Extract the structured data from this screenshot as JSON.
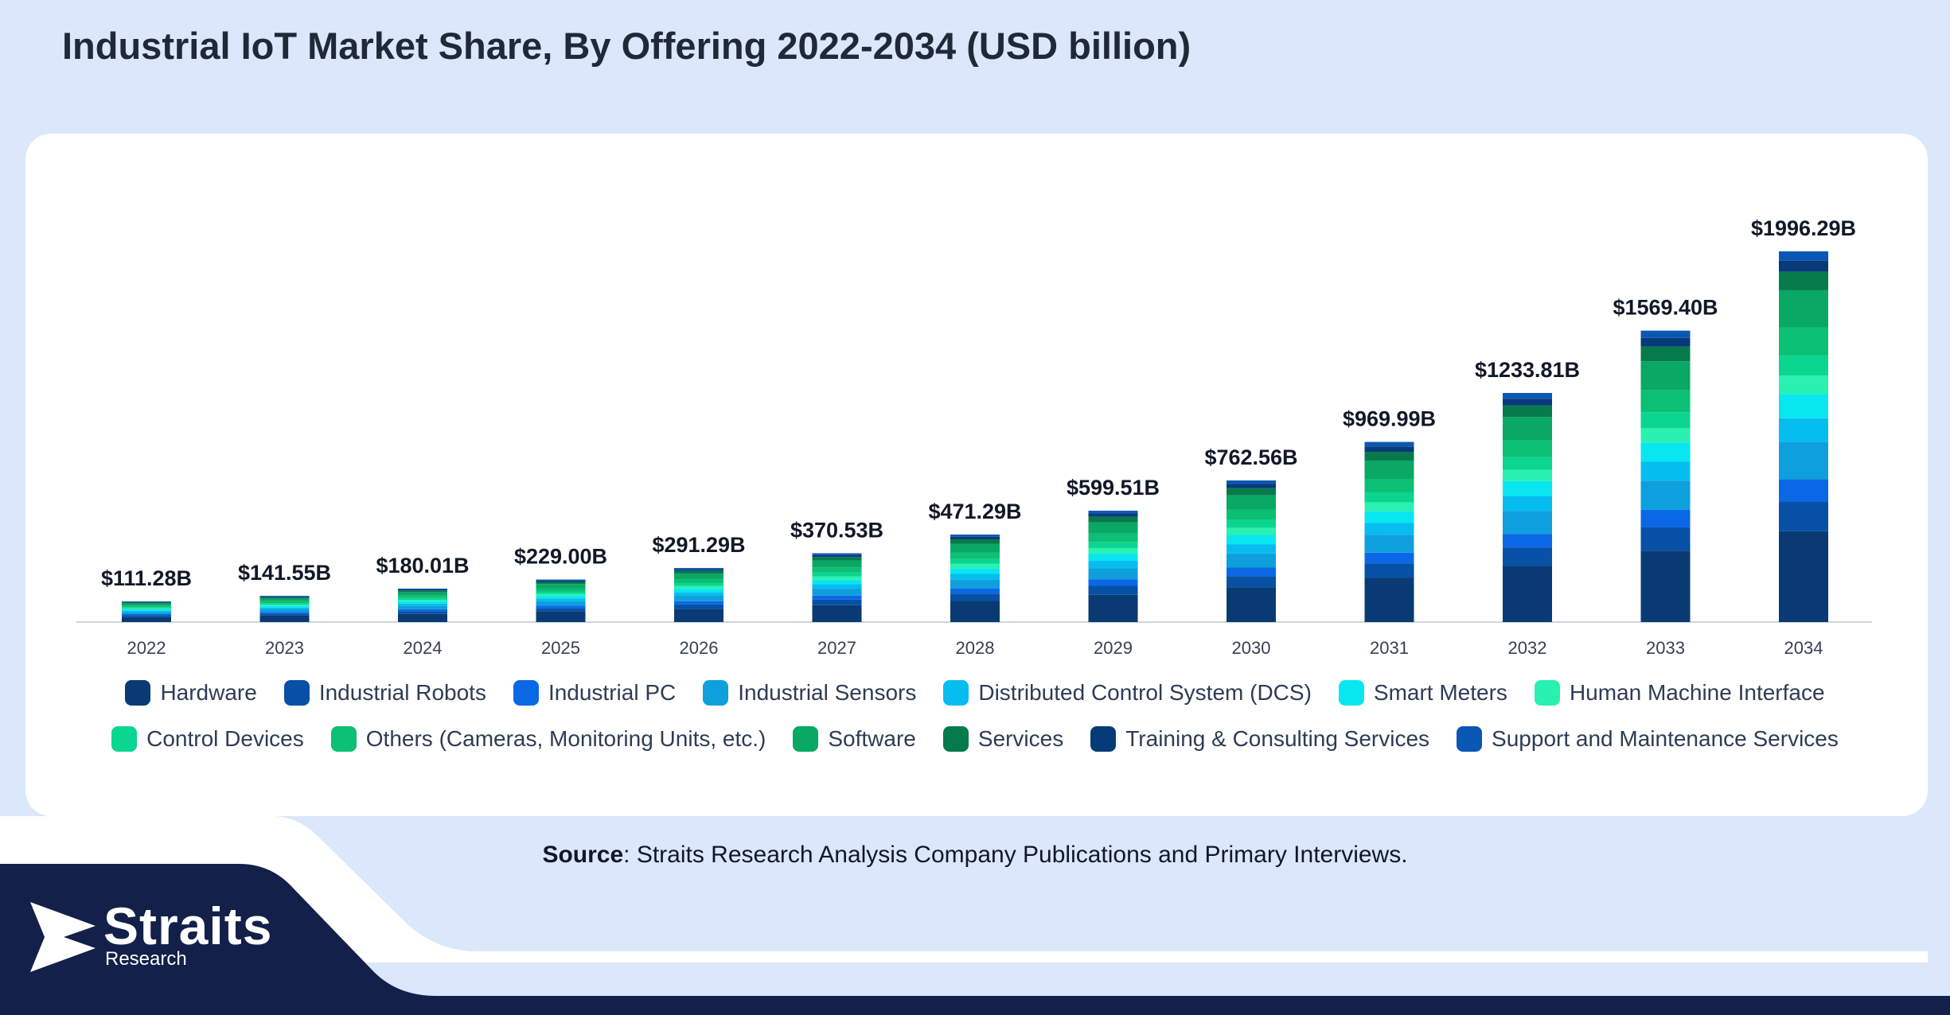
{
  "page": {
    "title": "Industrial IoT Market Share, By Offering 2022-2034 (USD billion)",
    "source_label": "Source",
    "source_text": ": Straits Research Analysis Company Publications and Primary Interviews.",
    "logo_name": "Straits",
    "logo_sub": "Research"
  },
  "colors": {
    "background": "#dbe7fb",
    "card": "#ffffff",
    "dark_navy": "#12204a"
  },
  "chart_data": {
    "type": "bar",
    "stacked": true,
    "title": "Industrial IoT Market Share, By Offering 2022-2034 (USD billion)",
    "unit": "USD billion",
    "categories": [
      "2022",
      "2023",
      "2024",
      "2025",
      "2026",
      "2027",
      "2028",
      "2029",
      "2030",
      "2031",
      "2032",
      "2033",
      "2034"
    ],
    "totals": [
      111.28,
      141.55,
      180.01,
      229.0,
      291.29,
      370.53,
      471.29,
      599.51,
      762.56,
      969.99,
      1233.81,
      1569.4,
      1996.29
    ],
    "total_labels": [
      "$111.28B",
      "$141.55B",
      "$180.01B",
      "$229.00B",
      "$291.29B",
      "$370.53B",
      "$471.29B",
      "$599.51B",
      "$762.56B",
      "$969.99B",
      "$1233.81B",
      "$1569.40B",
      "$1996.29B"
    ],
    "ylim": [
      0,
      2100
    ],
    "grid": false,
    "legend_position": "bottom",
    "series": [
      {
        "name": "Hardware",
        "color": "#0a3a73",
        "share": 0.245
      },
      {
        "name": "Industrial Robots",
        "color": "#0650a6",
        "share": 0.08
      },
      {
        "name": "Industrial PC",
        "color": "#0a68e6",
        "share": 0.06
      },
      {
        "name": "Industrial Sensors",
        "color": "#0ea0dc",
        "share": 0.1
      },
      {
        "name": "Distributed Control System (DCS)",
        "color": "#06bdf0",
        "share": 0.065
      },
      {
        "name": "Smart Meters",
        "color": "#08e6f0",
        "share": 0.065
      },
      {
        "name": "Human Machine Interface",
        "color": "#2af0b0",
        "share": 0.05
      },
      {
        "name": "Control Devices",
        "color": "#0ad690",
        "share": 0.055
      },
      {
        "name": "Others (Cameras, Monitoring Units, etc.)",
        "color": "#0bbf74",
        "share": 0.075
      },
      {
        "name": "Software",
        "color": "#09a864",
        "share": 0.1
      },
      {
        "name": "Services",
        "color": "#077a4c",
        "share": 0.05
      },
      {
        "name": "Training & Consulting Services",
        "color": "#063a78",
        "share": 0.03
      },
      {
        "name": "Support and Maintenance Services",
        "color": "#0b57b4",
        "share": 0.025
      }
    ]
  }
}
